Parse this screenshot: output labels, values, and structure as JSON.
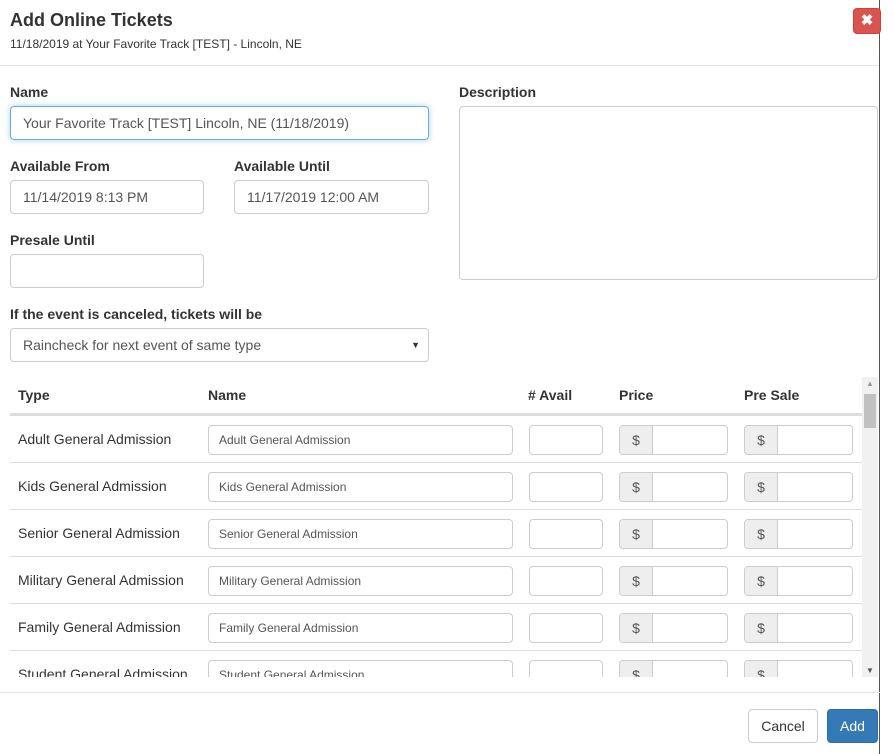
{
  "header": {
    "title": "Add Online Tickets",
    "subtitle": "11/18/2019 at Your Favorite Track [TEST] - Lincoln, NE",
    "close_icon": "close-icon"
  },
  "form": {
    "name_label": "Name",
    "name_value": "Your Favorite Track [TEST] Lincoln, NE (11/18/2019)",
    "description_label": "Description",
    "description_value": "",
    "from_label": "Available From",
    "from_value": "11/14/2019 8:13 PM",
    "until_label": "Available Until",
    "until_value": "11/17/2019 12:00 AM",
    "presale_label": "Presale Until",
    "presale_value": "",
    "cancel_label": "If the event is canceled, tickets will be",
    "cancel_value": "Raincheck for next event of same type"
  },
  "table": {
    "headers": [
      "Type",
      "Name",
      "# Avail",
      "Price",
      "Pre Sale"
    ],
    "currency": "$",
    "rows": [
      {
        "type": "Adult General Admission",
        "name": "Adult General Admission"
      },
      {
        "type": "Kids General Admission",
        "name": "Kids General Admission"
      },
      {
        "type": "Senior General Admission",
        "name": "Senior General Admission"
      },
      {
        "type": "Military General Admission",
        "name": "Military General Admission"
      },
      {
        "type": "Family General Admission",
        "name": "Family General Admission"
      },
      {
        "type": "Student General Admission",
        "name": "Student General Admission"
      }
    ]
  },
  "footer": {
    "cancel": "Cancel",
    "add": "Add"
  },
  "colors": {
    "primary": "#337ab7",
    "danger": "#d9534f"
  }
}
